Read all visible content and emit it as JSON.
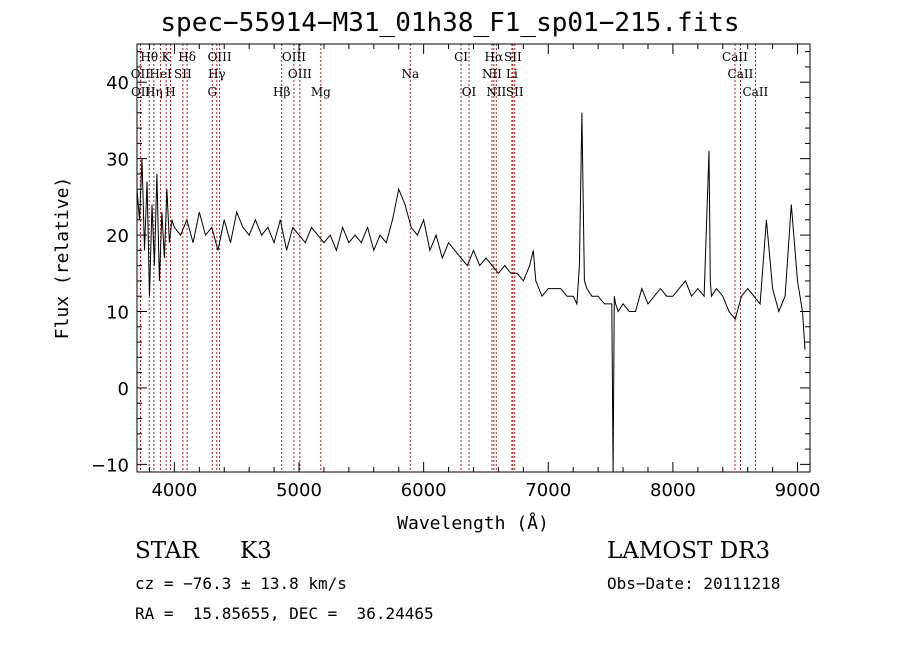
{
  "chart_data": {
    "type": "line",
    "title": "spec−55914−M31_01h38_F1_sp01−215.fits",
    "xlabel": "Wavelength (Å)",
    "ylabel": "Flux (relative)",
    "xlim": [
      3700,
      9100
    ],
    "ylim": [
      -11,
      45
    ],
    "xticks": [
      4000,
      5000,
      6000,
      7000,
      8000,
      9000
    ],
    "yticks": [
      -10,
      0,
      10,
      20,
      30,
      40
    ],
    "xtick_labels": [
      "4000",
      "5000",
      "6000",
      "7000",
      "8000",
      "9000"
    ],
    "ytick_labels": [
      "−10",
      "0",
      "10",
      "20",
      "30",
      "40"
    ],
    "series": [
      {
        "name": "flux",
        "x": [
          3700,
          3720,
          3740,
          3760,
          3780,
          3800,
          3820,
          3840,
          3860,
          3880,
          3900,
          3920,
          3940,
          3960,
          3980,
          4000,
          4050,
          4100,
          4150,
          4200,
          4250,
          4300,
          4350,
          4400,
          4450,
          4500,
          4550,
          4600,
          4650,
          4700,
          4750,
          4800,
          4850,
          4900,
          4950,
          5000,
          5050,
          5100,
          5150,
          5200,
          5250,
          5300,
          5350,
          5400,
          5450,
          5500,
          5550,
          5600,
          5650,
          5700,
          5750,
          5800,
          5850,
          5900,
          5950,
          6000,
          6050,
          6100,
          6150,
          6200,
          6250,
          6300,
          6350,
          6400,
          6450,
          6500,
          6550,
          6600,
          6650,
          6700,
          6750,
          6800,
          6850,
          6880,
          6900,
          6950,
          7000,
          7050,
          7100,
          7150,
          7200,
          7230,
          7250,
          7270,
          7290,
          7310,
          7350,
          7400,
          7450,
          7500,
          7510,
          7520,
          7530,
          7540,
          7560,
          7600,
          7650,
          7700,
          7750,
          7800,
          7850,
          7900,
          7950,
          8000,
          8050,
          8100,
          8150,
          8200,
          8250,
          8290,
          8300,
          8310,
          8350,
          8400,
          8450,
          8500,
          8550,
          8600,
          8650,
          8700,
          8750,
          8800,
          8850,
          8900,
          8950,
          9000,
          9040,
          9060
        ],
        "y": [
          26,
          22,
          30,
          18,
          27,
          12,
          24,
          16,
          28,
          14,
          23,
          17,
          26,
          19,
          22,
          21,
          20,
          22,
          19,
          23,
          20,
          21,
          18,
          22,
          19,
          23,
          21,
          20,
          22,
          20,
          21,
          19,
          22,
          18,
          21,
          20,
          19,
          21,
          20,
          19,
          20,
          18,
          21,
          19,
          20,
          19,
          21,
          18,
          20,
          19,
          22,
          26,
          24,
          21,
          20,
          22,
          18,
          20,
          17,
          19,
          18,
          17,
          16,
          18,
          16,
          17,
          16,
          15,
          16,
          15,
          15,
          14,
          16,
          18,
          14,
          12,
          13,
          13,
          13,
          12,
          12,
          11,
          16,
          36,
          14,
          13,
          12,
          12,
          11,
          11,
          11,
          -11,
          12,
          11,
          10,
          11,
          10,
          10,
          13,
          11,
          12,
          13,
          12,
          12,
          13,
          14,
          12,
          13,
          12,
          31,
          14,
          12,
          13,
          12,
          10,
          9,
          12,
          13,
          12,
          11,
          22,
          13,
          10,
          12,
          24,
          14,
          10,
          5
        ]
      }
    ],
    "reference_lines": [
      {
        "label": "Hθ",
        "x": 3798,
        "row": 0
      },
      {
        "label": "K",
        "x": 3934,
        "row": 0
      },
      {
        "label": "Hδ",
        "x": 4102,
        "row": 0
      },
      {
        "label": "OIII",
        "x": 4363,
        "row": 0
      },
      {
        "label": "OIII",
        "x": 4959,
        "row": 0
      },
      {
        "label": "CI",
        "x": 6300,
        "row": 0
      },
      {
        "label": "Hα",
        "x": 6563,
        "row": 0
      },
      {
        "label": "SII",
        "x": 6716,
        "row": 0
      },
      {
        "label": "CaII",
        "x": 8498,
        "row": 0
      },
      {
        "label": "OII",
        "x": 3727,
        "row": 1
      },
      {
        "label": "HeI",
        "x": 3889,
        "row": 1
      },
      {
        "label": "SII",
        "x": 4068,
        "row": 1
      },
      {
        "label": "Hγ",
        "x": 4340,
        "row": 1
      },
      {
        "label": "OIII",
        "x": 5007,
        "row": 1
      },
      {
        "label": "Na",
        "x": 5893,
        "row": 1
      },
      {
        "label": "NII",
        "x": 6548,
        "row": 1
      },
      {
        "label": "Li",
        "x": 6708,
        "row": 1
      },
      {
        "label": "CaII",
        "x": 8542,
        "row": 1
      },
      {
        "label": "OII",
        "x": 3729,
        "row": 2
      },
      {
        "label": "Hη",
        "x": 3835,
        "row": 2
      },
      {
        "label": "H",
        "x": 3969,
        "row": 2
      },
      {
        "label": "G",
        "x": 4304,
        "row": 2
      },
      {
        "label": "Hβ",
        "x": 4861,
        "row": 2
      },
      {
        "label": "Mg",
        "x": 5175,
        "row": 2
      },
      {
        "label": "OI",
        "x": 6364,
        "row": 2
      },
      {
        "label": "NII",
        "x": 6583,
        "row": 2
      },
      {
        "label": "SII",
        "x": 6731,
        "row": 2
      },
      {
        "label": "CaII",
        "x": 8662,
        "row": 2
      }
    ]
  },
  "info": {
    "object_class": "STAR",
    "subclass": "K3",
    "survey": "LAMOST DR3",
    "velocity": "cz = −76.3 ± 13.8 km/s",
    "obs_date": "Obs−Date: 20111218",
    "coords": "RA =  15.85655, DEC =  36.24465"
  },
  "colors": {
    "reference_line": "#b22222",
    "spectrum": "#000000",
    "axis": "#000000"
  }
}
